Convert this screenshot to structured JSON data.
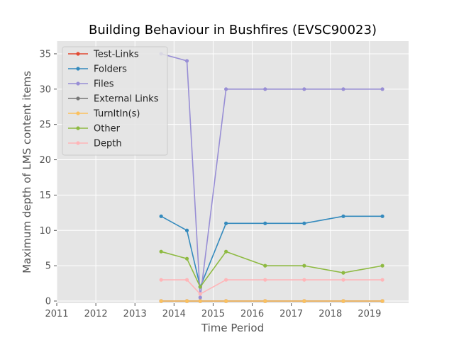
{
  "chart_data": {
    "type": "line",
    "title": "Building Behaviour in Bushfires (EVSC90023)",
    "xlabel": "Time Period",
    "ylabel": "Maximum depth of LMS content items",
    "xlim": [
      2011,
      2020
    ],
    "ylim": [
      -0.3,
      36.8
    ],
    "xticks": [
      2011,
      2012,
      2013,
      2014,
      2015,
      2016,
      2017,
      2018,
      2019
    ],
    "yticks": [
      0,
      5,
      10,
      15,
      20,
      25,
      30,
      35
    ],
    "grid": true,
    "legend_position": "top-left",
    "x": [
      2013.67,
      2014.33,
      2014.67,
      2015.33,
      2016.33,
      2017.33,
      2018.33,
      2019.33
    ],
    "series": [
      {
        "name": "Test-Links",
        "color": "#e24a33",
        "values": [
          0,
          0,
          0,
          0,
          0,
          0,
          0,
          0
        ]
      },
      {
        "name": "Folders",
        "color": "#348abd",
        "values": [
          12,
          10,
          2,
          11,
          11,
          11,
          12,
          12
        ]
      },
      {
        "name": "Files",
        "color": "#988ed5",
        "values": [
          35,
          34,
          0.5,
          30,
          30,
          30,
          30,
          30
        ]
      },
      {
        "name": "External Links",
        "color": "#777777",
        "values": [
          0,
          0,
          0,
          0,
          0,
          0,
          0,
          0
        ]
      },
      {
        "name": "TurnItIn(s)",
        "color": "#fbc15e",
        "values": [
          0,
          0,
          0,
          0,
          0,
          0,
          0,
          0
        ]
      },
      {
        "name": "Other",
        "color": "#8eba42",
        "values": [
          7,
          6,
          2,
          7,
          5,
          5,
          4,
          5
        ]
      },
      {
        "name": "Depth",
        "color": "#ffb5b8",
        "values": [
          3,
          3,
          1,
          3,
          3,
          3,
          3,
          3
        ]
      }
    ]
  }
}
